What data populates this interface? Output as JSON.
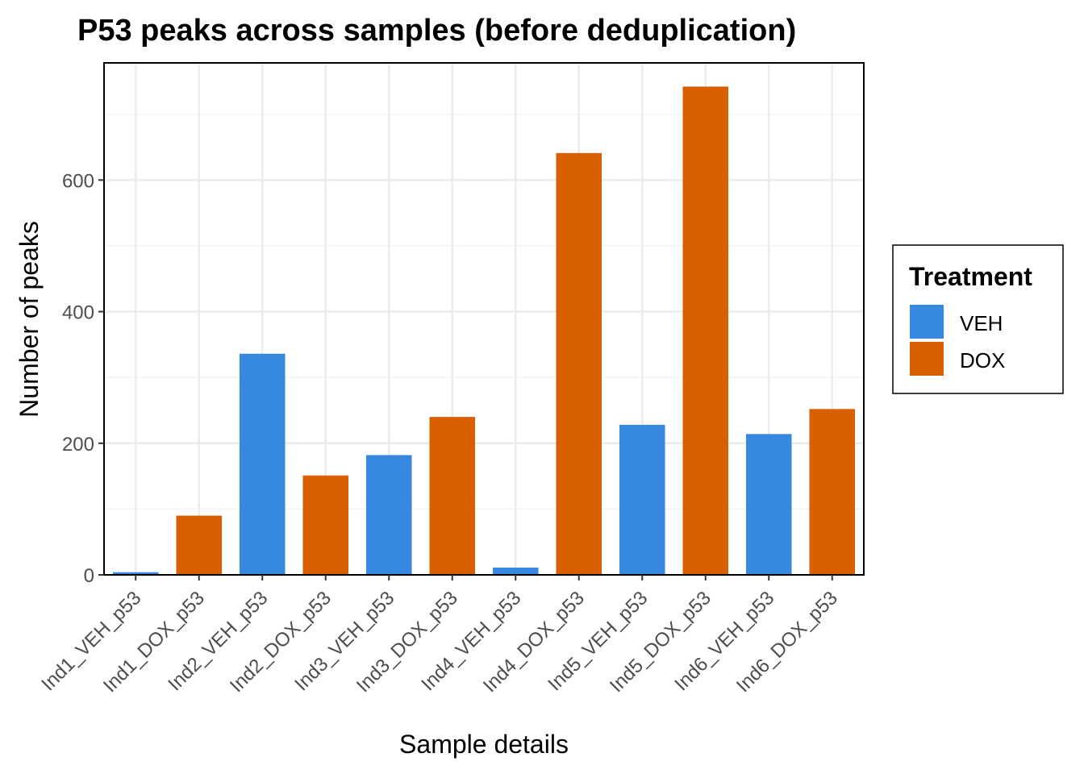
{
  "chart_data": {
    "type": "bar",
    "title": "P53 peaks across samples (before deduplication)",
    "xlabel": "Sample details",
    "ylabel": "Number of peaks",
    "categories": [
      "Ind1_VEH_p53",
      "Ind1_DOX_p53",
      "Ind2_VEH_p53",
      "Ind2_DOX_p53",
      "Ind3_VEH_p53",
      "Ind3_DOX_p53",
      "Ind4_VEH_p53",
      "Ind4_DOX_p53",
      "Ind5_VEH_p53",
      "Ind5_DOX_p53",
      "Ind6_VEH_p53",
      "Ind6_DOX_p53"
    ],
    "values": [
      4,
      90,
      336,
      151,
      182,
      240,
      11,
      641,
      228,
      742,
      214,
      252
    ],
    "treatment": [
      "VEH",
      "DOX",
      "VEH",
      "DOX",
      "VEH",
      "DOX",
      "VEH",
      "DOX",
      "VEH",
      "DOX",
      "VEH",
      "DOX"
    ],
    "ylim": [
      0,
      778
    ],
    "yticks": [
      0,
      200,
      400,
      600
    ],
    "grid": true,
    "legend": {
      "title": "Treatment",
      "position": "right",
      "entries": [
        {
          "name": "VEH",
          "color": "#3688E0"
        },
        {
          "name": "DOX",
          "color": "#D95F02"
        }
      ]
    }
  }
}
